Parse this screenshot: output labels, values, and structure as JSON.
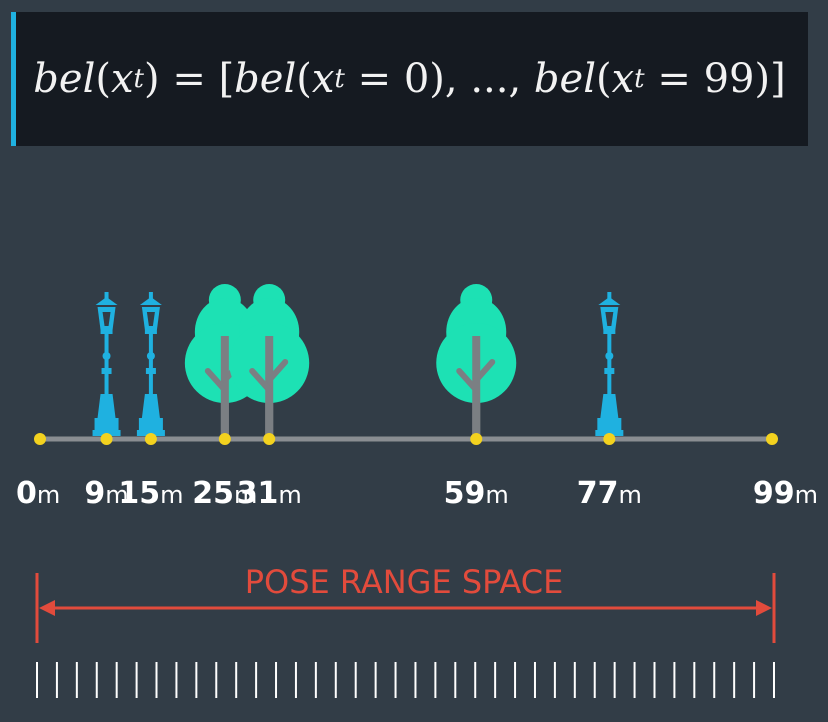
{
  "formula": {
    "lhs_func": "bel",
    "lhs_var": "x",
    "lhs_sub": "t",
    "rhs_open": "[",
    "rhs_first_func": "bel",
    "rhs_first_var": "x",
    "rhs_first_sub": "t",
    "rhs_first_val": "0",
    "ellipsis": "...",
    "rhs_last_func": "bel",
    "rhs_last_var": "x",
    "rhs_last_sub": "t",
    "rhs_last_val": "99",
    "rhs_close": "]"
  },
  "colors": {
    "background": "#323d47",
    "formula_bg": "#151a21",
    "accent": "#1fb1e0",
    "lamp": "#1fb1e0",
    "tree_canopy": "#1de1b4",
    "trunk": "#7b7f83",
    "road": "#8a8e92",
    "marker": "#f3d21f",
    "range": "#e24b3c",
    "ticks": "#ffffff"
  },
  "axis": {
    "min": 0,
    "max": 99,
    "markers": [
      {
        "value": 0,
        "label": "0",
        "unit": "m"
      },
      {
        "value": 9,
        "label": "9",
        "unit": "m"
      },
      {
        "value": 15,
        "label": "15",
        "unit": "m"
      },
      {
        "value": 25,
        "label": "25",
        "unit": "m"
      },
      {
        "value": 31,
        "label": "31",
        "unit": "m"
      },
      {
        "value": 59,
        "label": "59",
        "unit": "m"
      },
      {
        "value": 77,
        "label": "77",
        "unit": "m"
      },
      {
        "value": 99,
        "label": "99",
        "unit": "m"
      }
    ]
  },
  "landmarks": [
    {
      "type": "lamp",
      "value": 9,
      "icon": "street-lamp-icon"
    },
    {
      "type": "lamp",
      "value": 15,
      "icon": "street-lamp-icon"
    },
    {
      "type": "tree",
      "value": 25,
      "icon": "tree-icon"
    },
    {
      "type": "tree",
      "value": 31,
      "icon": "tree-icon"
    },
    {
      "type": "tree",
      "value": 59,
      "icon": "tree-icon"
    },
    {
      "type": "lamp",
      "value": 77,
      "icon": "street-lamp-icon"
    }
  ],
  "range": {
    "title": "POSE RANGE SPACE",
    "tick_count": 38
  }
}
